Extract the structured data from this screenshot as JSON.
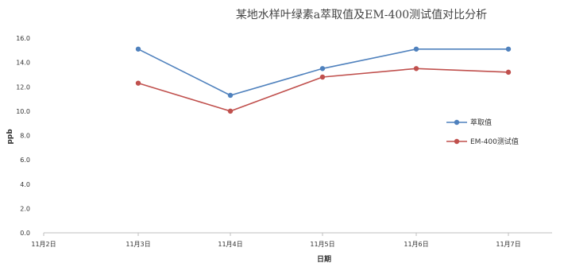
{
  "chart_data": {
    "type": "line",
    "title": "某地水样叶绿素a萃取值及EM-400测试值对比分析",
    "xlabel": "日期",
    "ylabel": "ppb",
    "categories": [
      "11月2日",
      "11月3日",
      "11月4日",
      "11月5日",
      "11月6日",
      "11月7日"
    ],
    "yticks": [
      "0.0",
      "2.0",
      "4.0",
      "6.0",
      "8.0",
      "10.0",
      "12.0",
      "14.0",
      "16.0"
    ],
    "ylim": [
      0,
      16
    ],
    "grid": false,
    "legend_position": "right",
    "series": [
      {
        "name": "萃取值",
        "color": "#4f81bd",
        "values": [
          null,
          15.1,
          11.3,
          13.5,
          15.1,
          15.1
        ]
      },
      {
        "name": "EM-400测试值",
        "color": "#c0504d",
        "values": [
          null,
          12.3,
          10.0,
          12.8,
          13.5,
          13.2
        ]
      }
    ]
  }
}
